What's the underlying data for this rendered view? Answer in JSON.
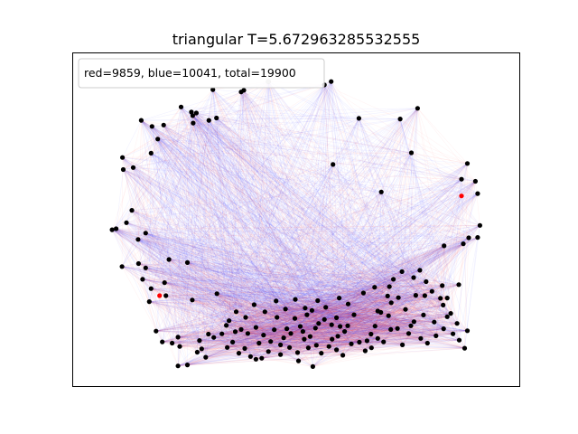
{
  "chart_data": {
    "type": "scatter",
    "title": "triangular T=5.672963285532555",
    "legend": {
      "text": "red=9859, blue=10041, total=19900",
      "placement": "top-left"
    },
    "axes": {
      "xticks": false,
      "yticks": false,
      "grid": false,
      "xlim": [
        0,
        1
      ],
      "ylim": [
        0,
        1
      ]
    },
    "colors": {
      "edge_red": "#ff3b3b",
      "edge_blue": "#3b3bff",
      "node": "#000000",
      "node_highlight": "#ff0000",
      "node_faint": "#bbbbbb"
    },
    "edge_counts": {
      "red": 9859,
      "blue": 10041,
      "total": 19900
    },
    "nodes": [
      [
        0.314,
        0.889
      ],
      [
        0.377,
        0.882
      ],
      [
        0.383,
        0.887
      ],
      [
        0.438,
        0.913
      ],
      [
        0.563,
        0.903
      ],
      [
        0.578,
        0.913
      ],
      [
        0.771,
        0.833
      ],
      [
        0.64,
        0.803
      ],
      [
        0.732,
        0.801
      ],
      [
        0.154,
        0.797
      ],
      [
        0.178,
        0.779
      ],
      [
        0.204,
        0.783
      ],
      [
        0.243,
        0.837
      ],
      [
        0.266,
        0.822
      ],
      [
        0.269,
        0.811
      ],
      [
        0.277,
        0.819
      ],
      [
        0.305,
        0.797
      ],
      [
        0.322,
        0.804
      ],
      [
        0.27,
        0.789
      ],
      [
        0.191,
        0.741
      ],
      [
        0.176,
        0.699
      ],
      [
        0.112,
        0.686
      ],
      [
        0.114,
        0.65
      ],
      [
        0.136,
        0.656
      ],
      [
        0.582,
        0.665
      ],
      [
        0.757,
        0.7
      ],
      [
        0.882,
        0.668
      ],
      [
        0.9,
        0.615
      ],
      [
        0.869,
        0.621
      ],
      [
        0.905,
        0.578
      ],
      [
        0.69,
        0.583
      ],
      [
        0.133,
        0.528
      ],
      [
        0.121,
        0.491
      ],
      [
        0.089,
        0.47
      ],
      [
        0.098,
        0.473
      ],
      [
        0.147,
        0.441
      ],
      [
        0.164,
        0.46
      ],
      [
        0.91,
        0.483
      ],
      [
        0.885,
        0.446
      ],
      [
        0.873,
        0.428
      ],
      [
        0.83,
        0.422
      ],
      [
        0.905,
        0.447
      ],
      [
        0.111,
        0.36
      ],
      [
        0.148,
        0.369
      ],
      [
        0.164,
        0.356
      ],
      [
        0.216,
        0.381
      ],
      [
        0.257,
        0.372
      ],
      [
        0.206,
        0.312
      ],
      [
        0.157,
        0.322
      ],
      [
        0.176,
        0.294
      ],
      [
        0.209,
        0.273
      ],
      [
        0.172,
        0.255
      ],
      [
        0.323,
        0.279
      ],
      [
        0.268,
        0.26
      ],
      [
        0.776,
        0.349
      ],
      [
        0.863,
        0.306
      ],
      [
        0.837,
        0.266
      ],
      [
        0.787,
        0.273
      ],
      [
        0.822,
        0.265
      ],
      [
        0.828,
        0.245
      ],
      [
        0.708,
        0.3
      ],
      [
        0.704,
        0.272
      ],
      [
        0.712,
        0.252
      ],
      [
        0.728,
        0.267
      ],
      [
        0.837,
        0.21
      ],
      [
        0.845,
        0.22
      ],
      [
        0.808,
        0.194
      ],
      [
        0.784,
        0.215
      ],
      [
        0.763,
        0.195
      ],
      [
        0.751,
        0.16
      ],
      [
        0.726,
        0.175
      ],
      [
        0.711,
        0.172
      ],
      [
        0.706,
        0.213
      ],
      [
        0.689,
        0.223
      ],
      [
        0.682,
        0.227
      ],
      [
        0.676,
        0.182
      ],
      [
        0.667,
        0.158
      ],
      [
        0.658,
        0.138
      ],
      [
        0.629,
        0.216
      ],
      [
        0.615,
        0.183
      ],
      [
        0.608,
        0.166
      ],
      [
        0.598,
        0.181
      ],
      [
        0.59,
        0.207
      ],
      [
        0.579,
        0.186
      ],
      [
        0.563,
        0.202
      ],
      [
        0.55,
        0.19
      ],
      [
        0.543,
        0.176
      ],
      [
        0.531,
        0.151
      ],
      [
        0.527,
        0.117
      ],
      [
        0.518,
        0.143
      ],
      [
        0.515,
        0.166
      ],
      [
        0.509,
        0.181
      ],
      [
        0.497,
        0.205
      ],
      [
        0.488,
        0.16
      ],
      [
        0.479,
        0.174
      ],
      [
        0.472,
        0.147
      ],
      [
        0.465,
        0.126
      ],
      [
        0.451,
        0.171
      ],
      [
        0.443,
        0.136
      ],
      [
        0.438,
        0.106
      ],
      [
        0.423,
        0.086
      ],
      [
        0.41,
        0.083
      ],
      [
        0.398,
        0.091
      ],
      [
        0.385,
        0.115
      ],
      [
        0.372,
        0.101
      ],
      [
        0.358,
        0.134
      ],
      [
        0.346,
        0.118
      ],
      [
        0.334,
        0.159
      ],
      [
        0.316,
        0.148
      ],
      [
        0.304,
        0.158
      ],
      [
        0.284,
        0.139
      ],
      [
        0.24,
        0.121
      ],
      [
        0.223,
        0.131
      ],
      [
        0.201,
        0.135
      ],
      [
        0.236,
        0.149
      ],
      [
        0.187,
        0.167
      ],
      [
        0.298,
        0.089
      ],
      [
        0.289,
        0.114
      ],
      [
        0.279,
        0.104
      ],
      [
        0.257,
        0.066
      ],
      [
        0.236,
        0.063
      ],
      [
        0.503,
        0.103
      ],
      [
        0.505,
        0.078
      ],
      [
        0.537,
        0.061
      ],
      [
        0.545,
        0.125
      ],
      [
        0.556,
        0.101
      ],
      [
        0.573,
        0.121
      ],
      [
        0.59,
        0.111
      ],
      [
        0.604,
        0.095
      ],
      [
        0.623,
        0.129
      ],
      [
        0.641,
        0.134
      ],
      [
        0.654,
        0.108
      ],
      [
        0.668,
        0.117
      ],
      [
        0.682,
        0.145
      ],
      [
        0.695,
        0.135
      ],
      [
        0.737,
        0.126
      ],
      [
        0.756,
        0.183
      ],
      [
        0.778,
        0.145
      ],
      [
        0.793,
        0.131
      ],
      [
        0.812,
        0.153
      ],
      [
        0.829,
        0.174
      ],
      [
        0.85,
        0.159
      ],
      [
        0.864,
        0.14
      ],
      [
        0.876,
        0.116
      ],
      [
        0.882,
        0.168
      ],
      [
        0.859,
        0.19
      ],
      [
        0.803,
        0.286
      ],
      [
        0.826,
        0.303
      ],
      [
        0.79,
        0.315
      ],
      [
        0.767,
        0.274
      ],
      [
        0.744,
        0.232
      ],
      [
        0.762,
        0.327
      ],
      [
        0.736,
        0.345
      ],
      [
        0.717,
        0.322
      ],
      [
        0.675,
        0.298
      ],
      [
        0.65,
        0.281
      ],
      [
        0.616,
        0.248
      ],
      [
        0.596,
        0.266
      ],
      [
        0.566,
        0.238
      ],
      [
        0.548,
        0.258
      ],
      [
        0.52,
        0.236
      ],
      [
        0.498,
        0.262
      ],
      [
        0.476,
        0.233
      ],
      [
        0.455,
        0.257
      ],
      [
        0.43,
        0.225
      ],
      [
        0.406,
        0.246
      ],
      [
        0.387,
        0.208
      ],
      [
        0.366,
        0.225
      ],
      [
        0.35,
        0.198
      ],
      [
        0.457,
        0.208
      ],
      [
        0.41,
        0.178
      ],
      [
        0.392,
        0.16
      ],
      [
        0.377,
        0.172
      ],
      [
        0.364,
        0.165
      ],
      [
        0.344,
        0.184
      ],
      [
        0.417,
        0.131
      ],
      [
        0.427,
        0.155
      ],
      [
        0.524,
        0.216
      ],
      [
        0.535,
        0.229
      ],
      [
        0.485,
        0.118
      ],
      [
        0.465,
        0.097
      ],
      [
        0.58,
        0.143
      ],
      [
        0.593,
        0.152
      ]
    ],
    "highlight_nodes": [
      [
        0.195,
        0.273
      ],
      [
        0.869,
        0.571
      ]
    ],
    "faint_nodes": [
      [
        0.438,
        0.913
      ]
    ]
  }
}
